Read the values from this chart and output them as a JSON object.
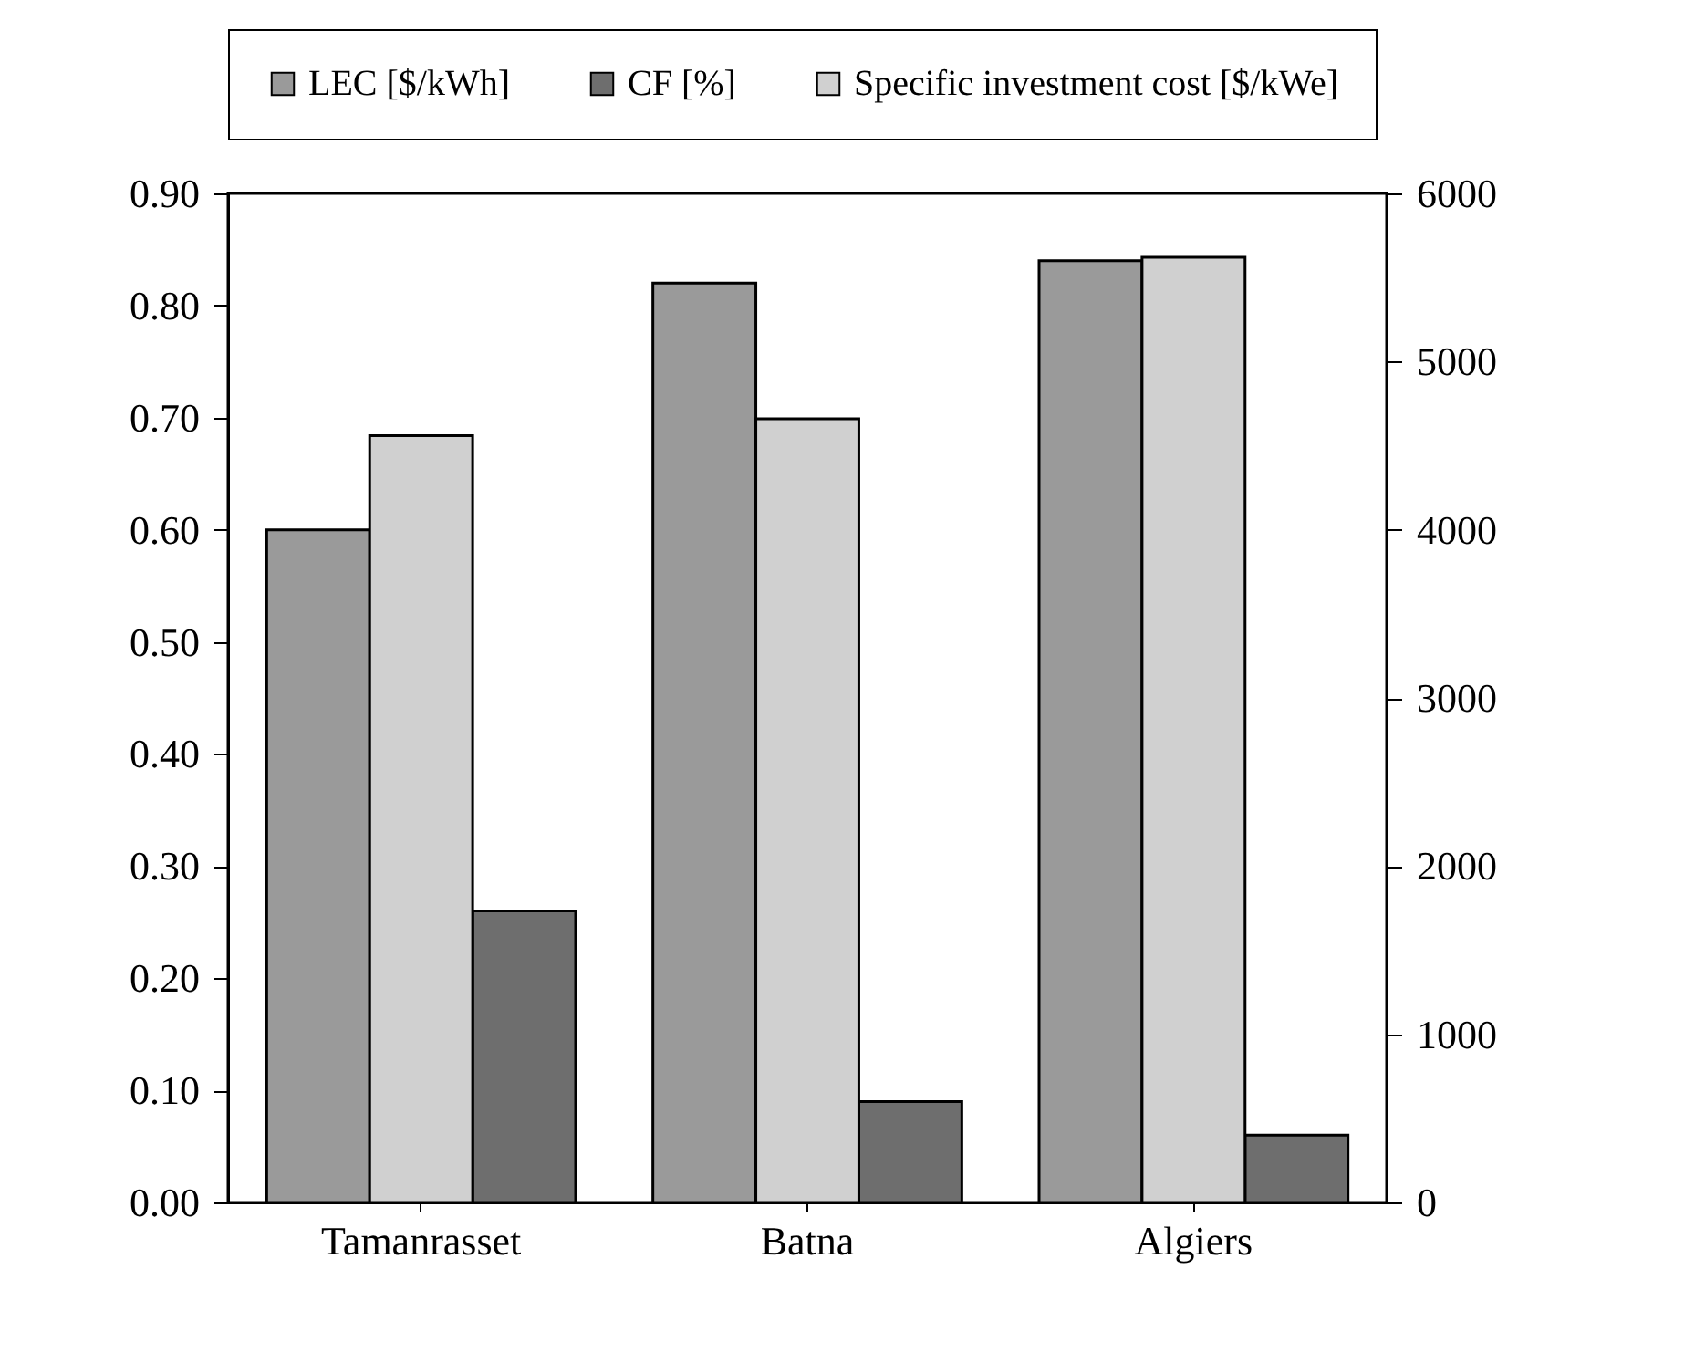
{
  "chart_data": {
    "type": "bar",
    "categories": [
      "Tamanrasset",
      "Batna",
      "Algiers"
    ],
    "series": [
      {
        "name": "LEC [$/kWh]",
        "color": "#9a9a9a",
        "values": [
          0.6,
          0.82,
          0.84
        ]
      },
      {
        "name": "Specific investment cost [$/kWe]",
        "color": "#d0d0d0",
        "values": [
          4560,
          4660,
          5620
        ],
        "axis": "y2"
      },
      {
        "name": "CF [%]",
        "color": "#6e6e6e",
        "values": [
          0.26,
          0.09,
          0.06
        ]
      }
    ],
    "ylim": [
      0,
      0.9
    ],
    "yticks": [
      {
        "value": 0,
        "label": "0.00"
      },
      {
        "value": 0.1,
        "label": "0.10"
      },
      {
        "value": 0.2,
        "label": "0.20"
      },
      {
        "value": 0.3,
        "label": "0.30"
      },
      {
        "value": 0.4,
        "label": "0.40"
      },
      {
        "value": 0.5,
        "label": "0.50"
      },
      {
        "value": 0.6,
        "label": "0.60"
      },
      {
        "value": 0.7,
        "label": "0.70"
      },
      {
        "value": 0.8,
        "label": "0.80"
      },
      {
        "value": 0.9,
        "label": "0.90"
      }
    ],
    "y2lim": [
      0,
      6000
    ],
    "y2ticks": [
      0,
      1000,
      2000,
      3000,
      4000,
      5000,
      6000
    ],
    "legend": "top",
    "grid": false
  }
}
